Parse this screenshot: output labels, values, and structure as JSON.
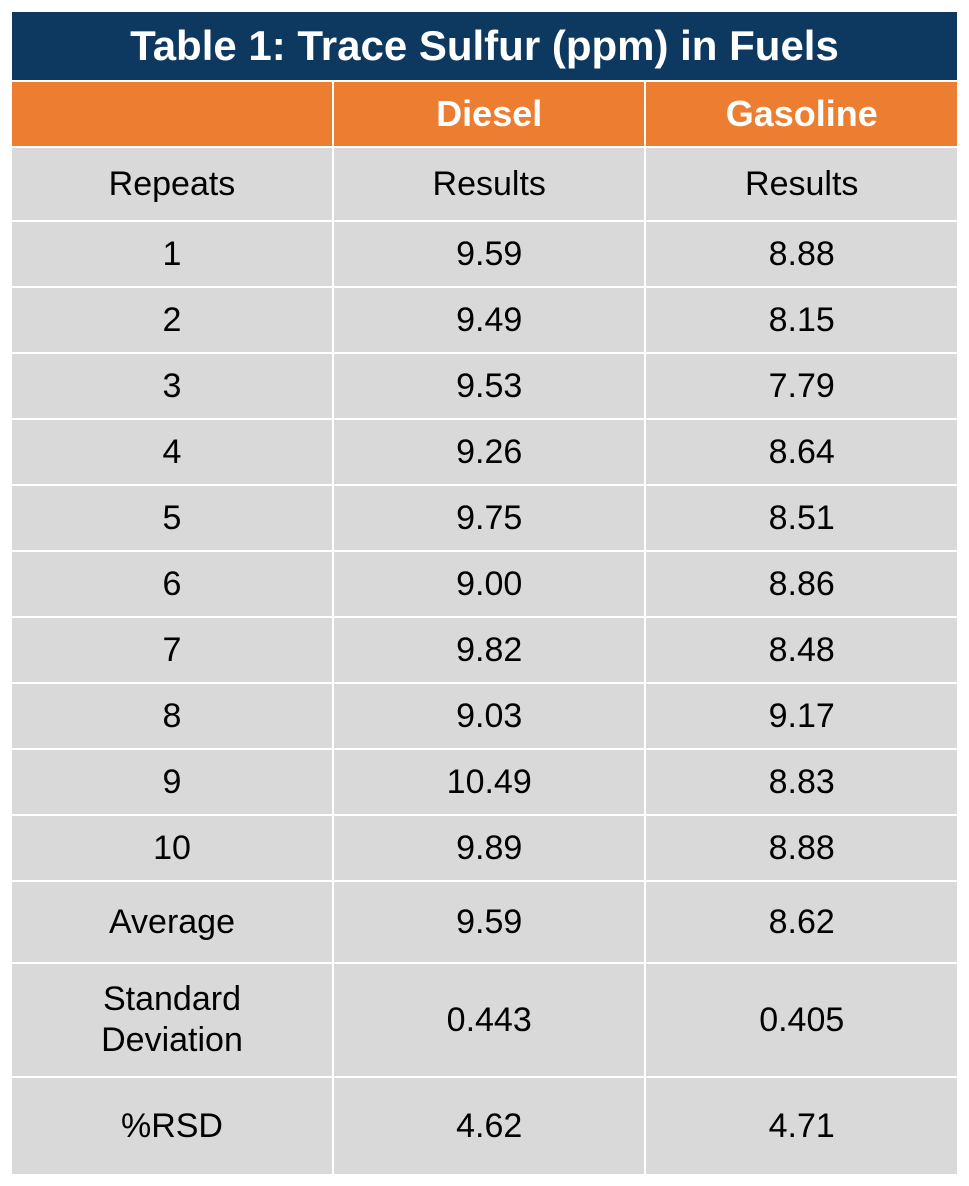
{
  "table": {
    "type": "table",
    "title": "Table 1:  Trace Sulfur (ppm) in Fuels",
    "colors": {
      "title_bg": "#0d3960",
      "header_bg": "#ed7d31",
      "cell_bg": "#d9d9d9",
      "border": "#ffffff",
      "title_text": "#ffffff",
      "header_text": "#ffffff",
      "cell_text": "#010101"
    },
    "fontsizes": {
      "title": 42,
      "header": 36,
      "subheader": 34,
      "data": 34,
      "summary": 34
    },
    "column_widths_pct": [
      34,
      33,
      33
    ],
    "header": {
      "blank": "",
      "col1": "Diesel",
      "col2": "Gasoline"
    },
    "subheader": {
      "label": "Repeats",
      "col1": "Results",
      "col2": "Results"
    },
    "rows": [
      {
        "label": "1",
        "diesel": "9.59",
        "gasoline": "8.88"
      },
      {
        "label": "2",
        "diesel": "9.49",
        "gasoline": "8.15"
      },
      {
        "label": "3",
        "diesel": "9.53",
        "gasoline": "7.79"
      },
      {
        "label": "4",
        "diesel": "9.26",
        "gasoline": "8.64"
      },
      {
        "label": "5",
        "diesel": "9.75",
        "gasoline": "8.51"
      },
      {
        "label": "6",
        "diesel": "9.00",
        "gasoline": "8.86"
      },
      {
        "label": "7",
        "diesel": "9.82",
        "gasoline": "8.48"
      },
      {
        "label": "8",
        "diesel": "9.03",
        "gasoline": "9.17"
      },
      {
        "label": "9",
        "diesel": "10.49",
        "gasoline": "8.83"
      },
      {
        "label": "10",
        "diesel": "9.89",
        "gasoline": "8.88"
      }
    ],
    "summary": {
      "average": {
        "label": "Average",
        "diesel": "9.59",
        "gasoline": "8.62"
      },
      "stddev": {
        "label": "Standard\nDeviation",
        "diesel": "0.443",
        "gasoline": "0.405"
      },
      "rsd": {
        "label": "%RSD",
        "diesel": "4.62",
        "gasoline": "4.71"
      }
    }
  }
}
